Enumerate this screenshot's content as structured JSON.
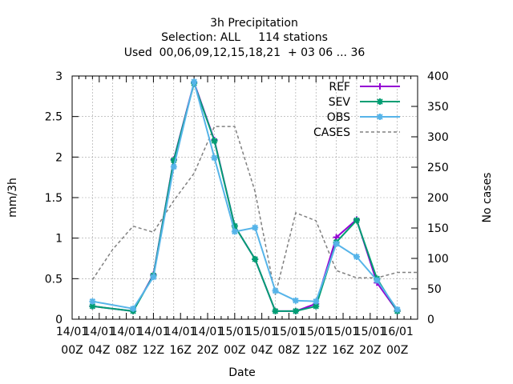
{
  "chart_data": {
    "type": "line",
    "title_lines": [
      "3h Precipitation",
      "Selection: ALL     114 stations",
      "Used  00,06,09,12,15,18,21  + 03 06 ... 36"
    ],
    "xlabel": "Date",
    "ylabel": "mm/3h",
    "y2label": "No cases",
    "ylim": [
      0,
      3
    ],
    "y2lim": [
      0,
      400
    ],
    "yticks": [
      "0",
      "0.5",
      "1",
      "1.5",
      "2",
      "2.5",
      "3"
    ],
    "y2ticks": [
      "0",
      "50",
      "100",
      "150",
      "200",
      "250",
      "300",
      "350",
      "400"
    ],
    "xlim": [
      "14/01 00Z",
      "16/01 03Z"
    ],
    "xticks": [
      {
        "date": "14/01",
        "hour": "00Z"
      },
      {
        "date": "14/01",
        "hour": "04Z"
      },
      {
        "date": "14/01",
        "hour": "08Z"
      },
      {
        "date": "14/01",
        "hour": "12Z"
      },
      {
        "date": "14/01",
        "hour": "16Z"
      },
      {
        "date": "14/01",
        "hour": "20Z"
      },
      {
        "date": "15/01",
        "hour": "00Z"
      },
      {
        "date": "15/01",
        "hour": "04Z"
      },
      {
        "date": "15/01",
        "hour": "08Z"
      },
      {
        "date": "15/01",
        "hour": "12Z"
      },
      {
        "date": "15/01",
        "hour": "16Z"
      },
      {
        "date": "15/01",
        "hour": "20Z"
      },
      {
        "date": "16/01",
        "hour": "00Z"
      }
    ],
    "x": [
      "14/01 03Z",
      "14/01 09Z",
      "14/01 12Z",
      "14/01 15Z",
      "14/01 18Z",
      "14/01 21Z",
      "15/01 00Z",
      "15/01 03Z",
      "15/01 06Z",
      "15/01 09Z",
      "15/01 12Z",
      "15/01 15Z",
      "15/01 18Z",
      "15/01 21Z",
      "16/01 00Z"
    ],
    "grid": true,
    "legend_position": "top-right",
    "series": [
      {
        "name": "REF",
        "axis": "y",
        "color": "#9400d3",
        "marker": "plus",
        "style": "solid",
        "values": [
          0.16,
          0.1,
          0.55,
          1.97,
          2.92,
          2.21,
          1.15,
          0.74,
          0.1,
          0.1,
          0.19,
          1.01,
          1.23,
          0.45,
          0.1
        ]
      },
      {
        "name": "SEV",
        "axis": "y",
        "color": "#009e73",
        "marker": "star",
        "style": "solid",
        "values": [
          0.16,
          0.1,
          0.54,
          1.96,
          2.91,
          2.2,
          1.15,
          0.74,
          0.1,
          0.1,
          0.16,
          0.95,
          1.22,
          0.5,
          0.1
        ]
      },
      {
        "name": "OBS",
        "axis": "y",
        "color": "#56b4e9",
        "marker": "star",
        "style": "solid",
        "values": [
          0.22,
          0.13,
          0.52,
          1.88,
          2.93,
          1.99,
          1.08,
          1.13,
          0.35,
          0.23,
          0.22,
          0.93,
          0.77,
          0.48,
          0.12
        ]
      },
      {
        "name": "CASES",
        "axis": "y2",
        "color": "#808080",
        "marker": "none",
        "style": "dashed",
        "x": [
          "14/01 03Z",
          "14/01 06Z",
          "14/01 09Z",
          "14/01 12Z",
          "14/01 15Z",
          "14/01 18Z",
          "14/01 21Z",
          "15/01 00Z",
          "15/01 03Z",
          "15/01 06Z",
          "15/01 09Z",
          "15/01 12Z",
          "15/01 15Z",
          "15/01 18Z",
          "15/01 21Z",
          "16/01 00Z",
          "16/01 03Z"
        ],
        "values": [
          65,
          115,
          153,
          143,
          195,
          240,
          317,
          317,
          210,
          40,
          175,
          162,
          80,
          68,
          68,
          77,
          77
        ]
      }
    ]
  }
}
